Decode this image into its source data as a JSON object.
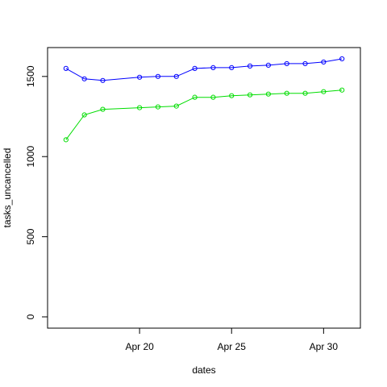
{
  "chart_data": {
    "type": "line",
    "title": "",
    "xlabel": "dates",
    "ylabel": "tasks_uncancelled",
    "x": [
      "2020-04-16",
      "2020-04-17",
      "2020-04-18",
      "2020-04-20",
      "2020-04-21",
      "2020-04-22",
      "2020-04-23",
      "2020-04-24",
      "2020-04-25",
      "2020-04-26",
      "2020-04-27",
      "2020-04-28",
      "2020-04-29",
      "2020-04-30",
      "2020-05-01"
    ],
    "x_tick_labels": [
      "Apr 20",
      "Apr 25",
      "Apr 30"
    ],
    "x_tick_values": [
      "2020-04-20",
      "2020-04-25",
      "2020-04-30"
    ],
    "xlim": [
      "2020-04-15",
      "2020-05-02"
    ],
    "ylim": [
      0,
      1650
    ],
    "y_ticks": [
      0,
      500,
      1000,
      1500
    ],
    "grid": false,
    "series": [
      {
        "color": "#0000ff",
        "values": [
          1550,
          1485,
          1475,
          1495,
          1500,
          1500,
          1550,
          1555,
          1555,
          1565,
          1570,
          1580,
          1580,
          1590,
          1610
        ]
      },
      {
        "color": "#00dd00",
        "values": [
          1105,
          1260,
          1295,
          1305,
          1310,
          1315,
          1370,
          1370,
          1380,
          1385,
          1390,
          1395,
          1395,
          1405,
          1415
        ]
      }
    ]
  }
}
